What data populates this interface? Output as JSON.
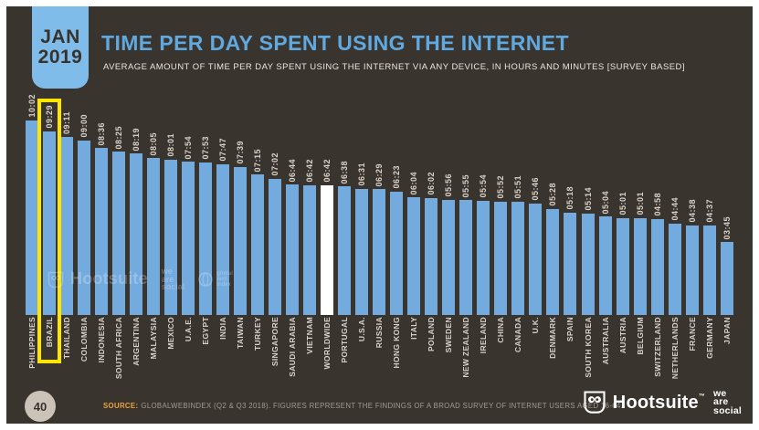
{
  "header": {
    "date_badge": {
      "month": "JAN",
      "year": "2019"
    },
    "title": "TIME PER DAY SPENT USING THE INTERNET",
    "subtitle": "AVERAGE AMOUNT OF TIME PER DAY SPENT USING THE INTERNET VIA ANY DEVICE, IN HOURS AND MINUTES [SURVEY BASED]"
  },
  "chart_data": {
    "type": "bar",
    "title": "TIME PER DAY SPENT USING THE INTERNET",
    "unit": "hours:minutes per day (hh:mm)",
    "orientation": "vertical-bars-with-rotated-labels",
    "bar_color": "#74abdf",
    "special_category": "WORLDWIDE",
    "special_bar_color": "#ffffff",
    "highlight_category": "BRAZIL",
    "highlight_color": "#ffe600",
    "ylim": [
      "00:00",
      "10:02"
    ],
    "items": [
      {
        "country": "PHILIPPINES",
        "time": "10:02"
      },
      {
        "country": "BRAZIL",
        "time": "09:29"
      },
      {
        "country": "THAILAND",
        "time": "09:11"
      },
      {
        "country": "COLOMBIA",
        "time": "09:00"
      },
      {
        "country": "INDONESIA",
        "time": "08:36"
      },
      {
        "country": "SOUTH AFRICA",
        "time": "08:25"
      },
      {
        "country": "ARGENTINA",
        "time": "08:19"
      },
      {
        "country": "MALAYSIA",
        "time": "08:05"
      },
      {
        "country": "MEXICO",
        "time": "08:01"
      },
      {
        "country": "U.A.E.",
        "time": "07:54"
      },
      {
        "country": "EGYPT",
        "time": "07:53"
      },
      {
        "country": "INDIA",
        "time": "07:47"
      },
      {
        "country": "TAIWAN",
        "time": "07:39"
      },
      {
        "country": "TURKEY",
        "time": "07:15"
      },
      {
        "country": "SINGAPORE",
        "time": "07:02"
      },
      {
        "country": "SAUDI ARABIA",
        "time": "06:44"
      },
      {
        "country": "VIETNAM",
        "time": "06:42"
      },
      {
        "country": "WORLDWIDE",
        "time": "06:42"
      },
      {
        "country": "PORTUGAL",
        "time": "06:38"
      },
      {
        "country": "U.S.A.",
        "time": "06:31"
      },
      {
        "country": "RUSSIA",
        "time": "06:29"
      },
      {
        "country": "HONG KONG",
        "time": "06:23"
      },
      {
        "country": "ITALY",
        "time": "06:04"
      },
      {
        "country": "POLAND",
        "time": "06:02"
      },
      {
        "country": "SWEDEN",
        "time": "05:56"
      },
      {
        "country": "NEW ZEALAND",
        "time": "05:55"
      },
      {
        "country": "IRELAND",
        "time": "05:54"
      },
      {
        "country": "CHINA",
        "time": "05:52"
      },
      {
        "country": "CANADA",
        "time": "05:51"
      },
      {
        "country": "U.K.",
        "time": "05:46"
      },
      {
        "country": "DENMARK",
        "time": "05:28"
      },
      {
        "country": "SPAIN",
        "time": "05:18"
      },
      {
        "country": "SOUTH KOREA",
        "time": "05:14"
      },
      {
        "country": "AUSTRALIA",
        "time": "05:04"
      },
      {
        "country": "AUSTRIA",
        "time": "05:01"
      },
      {
        "country": "BELGIUM",
        "time": "05:01"
      },
      {
        "country": "SWITZERLAND",
        "time": "04:58"
      },
      {
        "country": "NETHERLANDS",
        "time": "04:44"
      },
      {
        "country": "FRANCE",
        "time": "04:38"
      },
      {
        "country": "GERMANY",
        "time": "04:37"
      },
      {
        "country": "JAPAN",
        "time": "03:45"
      }
    ]
  },
  "watermark": {
    "hootsuite": "Hootsuite",
    "was_lines": [
      "we",
      "are",
      "social"
    ],
    "gwi_lines": [
      "global",
      "web",
      "index"
    ]
  },
  "footer": {
    "page_number": "40",
    "source_label": "SOURCE:",
    "source_text": "GLOBALWEBINDEX (Q2 & Q3 2018). FIGURES REPRESENT THE FINDINGS OF A BROAD SURVEY OF INTERNET USERS AGED 16-64.",
    "brand_hootsuite": "Hootsuite",
    "brand_tm": "™",
    "was_lines": [
      "we",
      "are",
      "social"
    ]
  },
  "colors": {
    "background": "#3a342f",
    "frame": "#ffffff",
    "bar": "#74abdf",
    "worldwide_bar": "#ffffff",
    "accent_blue": "#60a9e0",
    "badge_blue": "#7fbce9",
    "label_cream": "#d9d3ca",
    "highlight_yellow": "#ffe600",
    "source_orange": "#eda43c"
  }
}
